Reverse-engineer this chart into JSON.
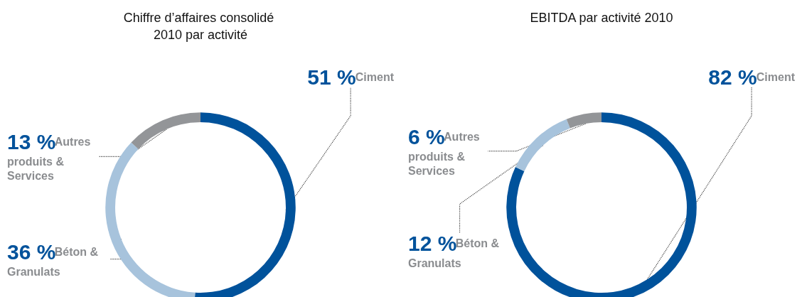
{
  "chart_data": [
    {
      "type": "donut",
      "title": "Chiffre d’affaires consolidé 2010 par activité",
      "categories": [
        "Ciment",
        "Béton & Granulats",
        "Autres produits & Services"
      ],
      "values": [
        51,
        36,
        13
      ],
      "colors": [
        "#00529b",
        "#a7c3dc",
        "#939598"
      ],
      "value_labels": [
        "51 %",
        "36 %",
        "13 %"
      ],
      "legend": false
    },
    {
      "type": "donut",
      "title": "EBITDA par activité 2010",
      "categories": [
        "Ciment",
        "Béton & Granulats",
        "Autres produits & Services"
      ],
      "values": [
        82,
        12,
        6
      ],
      "colors": [
        "#00529b",
        "#a7c3dc",
        "#939598"
      ],
      "value_labels": [
        "82 %",
        "12 %",
        "6 %"
      ],
      "legend": false
    }
  ]
}
